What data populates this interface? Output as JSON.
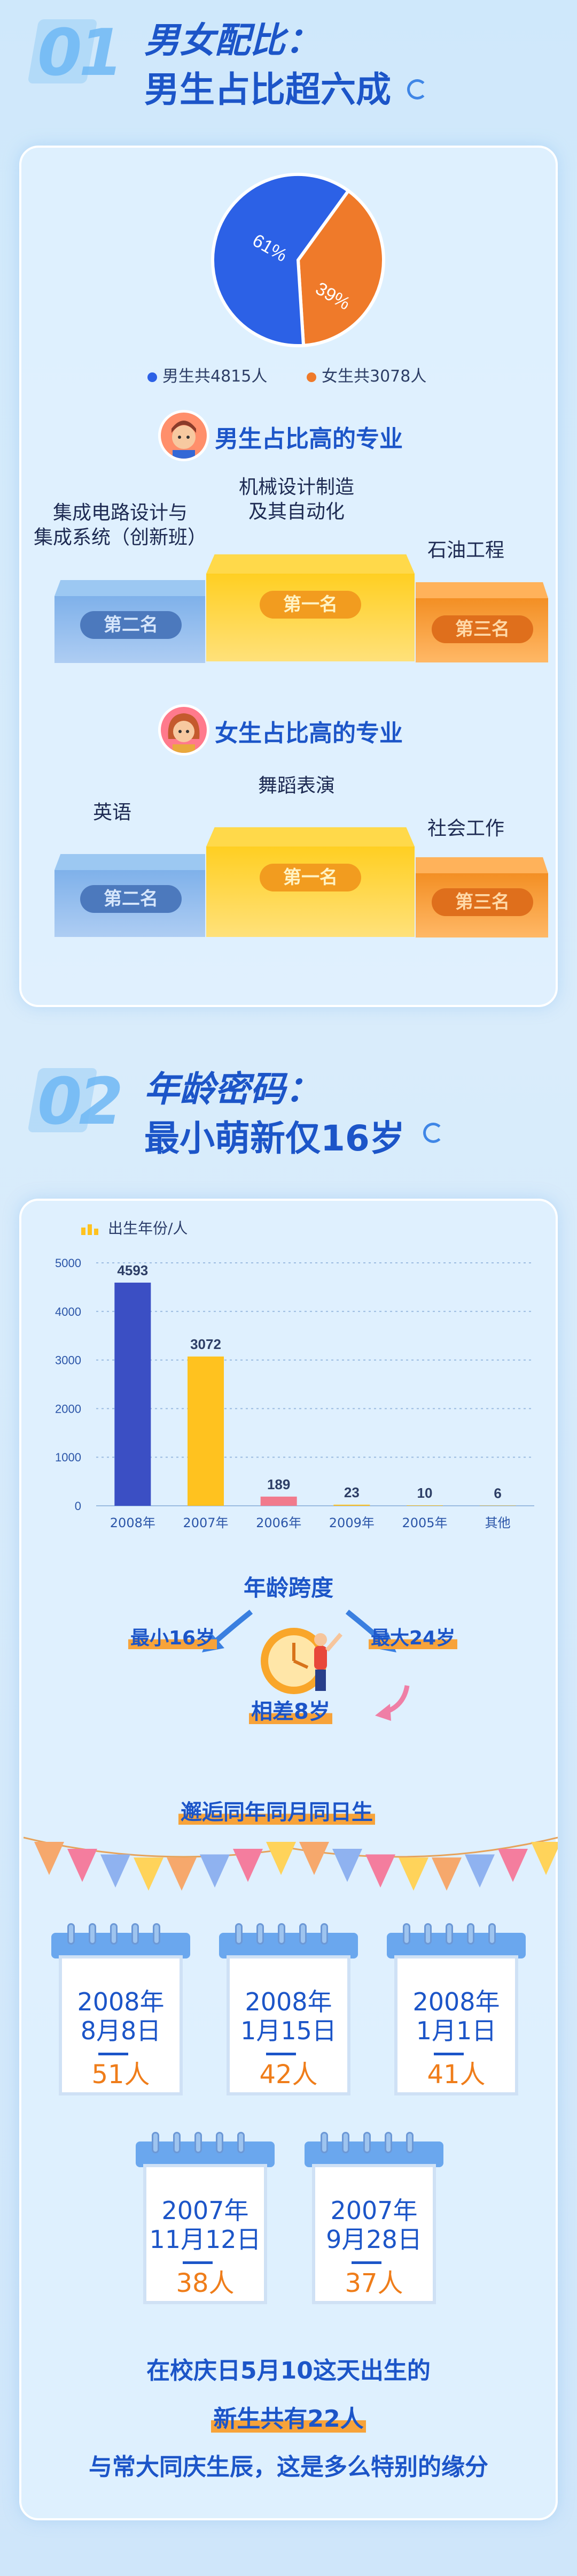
{
  "section1": {
    "num": "01",
    "title": "男女配比：",
    "subtitle": "男生占比超六成",
    "pie": {
      "male_pct": "61%",
      "female_pct": "39%",
      "male_value": 61,
      "female_value": 39
    },
    "legend": {
      "male": "男生共4815人",
      "female": "女生共3078人"
    },
    "colors": {
      "male": "#2c61e6",
      "female": "#ef7a2a"
    },
    "male_majors": {
      "title": "男生占比高的专业",
      "first": "机械设计制造\n及其自动化",
      "second": "集成电路设计与\n集成系统（创新班）",
      "third": "石油工程"
    },
    "female_majors": {
      "title": "女生占比高的专业",
      "first": "舞蹈表演",
      "second": "英语",
      "third": "社会工作"
    },
    "rank_labels": {
      "first": "第一名",
      "second": "第二名",
      "third": "第三名"
    }
  },
  "section2": {
    "num": "02",
    "title": "年龄密码：",
    "subtitle": "最小萌新仅16岁",
    "chart_data": {
      "type": "bar",
      "legend": "出生年份/人",
      "categories": [
        "2008年",
        "2007年",
        "2006年",
        "2009年",
        "2005年",
        "其他"
      ],
      "values": [
        4593,
        3072,
        189,
        23,
        10,
        6
      ],
      "colors": [
        "#3b4fc4",
        "#ffc21f",
        "#f17a8c",
        "#ffc21f",
        "#ffc21f",
        "#ffc21f"
      ],
      "y_ticks": [
        "5000",
        "4000",
        "3000",
        "2000",
        "1000",
        "0"
      ],
      "ylim": [
        0,
        5000
      ]
    },
    "age_span": {
      "title": "年龄跨度",
      "min": "最小16岁",
      "max": "最大24岁",
      "diff": "相差8岁"
    },
    "same_birthday_title": "邂逅同年同月同日生",
    "calendars": [
      {
        "date": "2008年\n8月8日",
        "count": "51人"
      },
      {
        "date": "2008年\n1月15日",
        "count": "42人"
      },
      {
        "date": "2008年\n1月1日",
        "count": "41人"
      },
      {
        "date": "2007年\n11月12日",
        "count": "38人"
      },
      {
        "date": "2007年\n9月28日",
        "count": "37人"
      }
    ],
    "closing": {
      "line1": "在校庆日5月10这天出生的",
      "line2": "新生共有22人",
      "line3": "与常大同庆生辰，这是多么特别的缘分"
    }
  }
}
